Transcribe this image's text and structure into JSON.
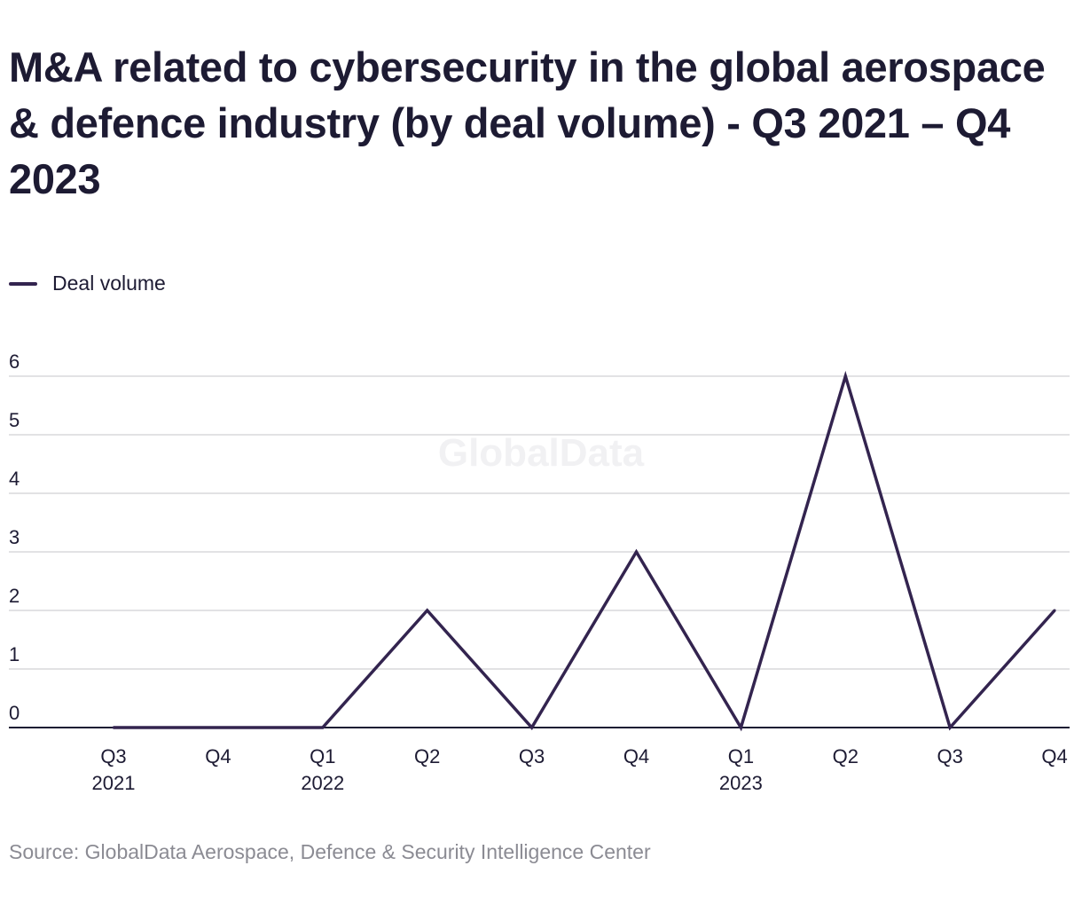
{
  "title": "M&A related to cybersecurity in the global aerospace & defence industry (by deal volume) - Q3 2021 – Q4 2023",
  "legend_label": "Deal volume",
  "source": "Source: GlobalData Aerospace, Defence & Security Intelligence Center",
  "watermark": "GlobalData",
  "colors": {
    "line": "#33244f",
    "grid": "#d9d9dc",
    "axis": "#1d1b33",
    "text": "#1d1b33",
    "source": "#8b8b93"
  },
  "chart_data": {
    "type": "line",
    "categories": [
      "Q3",
      "Q4",
      "Q1",
      "Q2",
      "Q3",
      "Q4",
      "Q1",
      "Q2",
      "Q3",
      "Q4"
    ],
    "year_labels": [
      "2021",
      "",
      "2022",
      "",
      "",
      "",
      "2023",
      "",
      "",
      ""
    ],
    "series": [
      {
        "name": "Deal volume",
        "values": [
          0,
          0,
          0,
          2,
          0,
          3,
          0,
          6,
          0,
          2
        ]
      }
    ],
    "yticks": [
      0,
      1,
      2,
      3,
      4,
      5,
      6
    ],
    "ylim": [
      0,
      6
    ],
    "grid": true,
    "legend": "top-left"
  }
}
